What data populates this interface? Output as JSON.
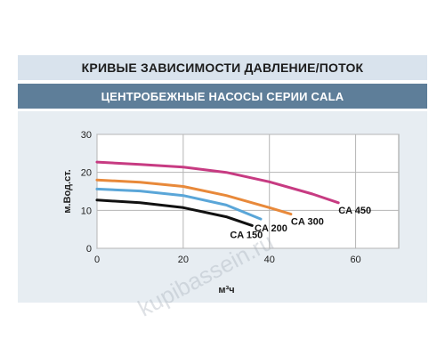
{
  "header": {
    "title": "КРИВЫЕ ЗАВИСИМОСТИ ДАВЛЕНИЕ/ПОТОК",
    "subtitle": "ЦЕНТРОБЕЖНЫЕ НАСОСЫ СЕРИИ CALA"
  },
  "watermark": "kupibassein.ru",
  "colors": {
    "title_band": "#d9e3ed",
    "subtitle_band": "#5e7e99",
    "panel": "#e7edf2",
    "grid": "#b5b5b5"
  },
  "chart_data": {
    "type": "line",
    "title": "ЦЕНТРОБЕЖНЫЕ НАСОСЫ СЕРИИ CALA",
    "xlabel": "м³ч",
    "ylabel": "м.Вод.ст.",
    "xlim": [
      0,
      70
    ],
    "ylim": [
      0,
      30
    ],
    "xticks": [
      0,
      20,
      40,
      60
    ],
    "yticks": [
      0,
      10,
      20,
      30
    ],
    "grid": true,
    "series": [
      {
        "name": "CA 450",
        "color": "#c73b82",
        "x": [
          0,
          10,
          20,
          30,
          40,
          50,
          56
        ],
        "y": [
          22.7,
          22.1,
          21.4,
          20.0,
          17.5,
          14.3,
          12.0
        ]
      },
      {
        "name": "CA 300",
        "color": "#e8893a",
        "x": [
          0,
          10,
          20,
          30,
          40,
          45
        ],
        "y": [
          18.0,
          17.4,
          16.3,
          13.9,
          10.7,
          9.0
        ]
      },
      {
        "name": "CA 200",
        "color": "#5aa6d8",
        "x": [
          0,
          10,
          20,
          30,
          38
        ],
        "y": [
          15.6,
          15.1,
          13.9,
          11.4,
          7.7
        ]
      },
      {
        "name": "CA 150",
        "color": "#111111",
        "x": [
          0,
          10,
          20,
          30,
          36
        ],
        "y": [
          12.7,
          12.0,
          10.7,
          8.3,
          6.0
        ]
      }
    ]
  }
}
